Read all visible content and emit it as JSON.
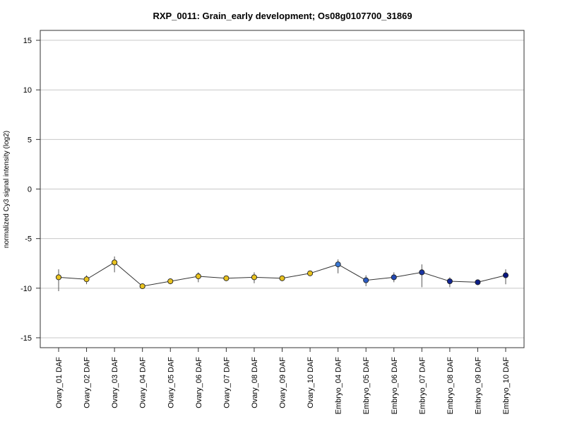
{
  "chart_data": {
    "type": "line",
    "title": "RXP_0011: Grain_early development; Os08g0107700_31869",
    "xlabel": "",
    "ylabel": "normalized Cy3 signal intensity (log2)",
    "ylim": [
      -16,
      16
    ],
    "yticks": [
      -15,
      -10,
      -5,
      0,
      5,
      10,
      15
    ],
    "ytick_labels": [
      "-15",
      "-10",
      "-5",
      "0",
      "5",
      "10",
      "15"
    ],
    "grid": true,
    "categories": [
      "Ovary_01 DAF",
      "Ovary_02 DAF",
      "Ovary_03 DAF",
      "Ovary_04 DAF",
      "Ovary_05 DAF",
      "Ovary_06 DAF",
      "Ovary_07 DAF",
      "Ovary_08 DAF",
      "Ovary_09 DAF",
      "Ovary_10 DAF",
      "Embryo_04 DAF",
      "Embryo_05 DAF",
      "Embryo_06 DAF",
      "Embryo_07 DAF",
      "Embryo_08 DAF",
      "Embryo_09 DAF",
      "Embryo_10 DAF"
    ],
    "series": [
      {
        "values": [
          -8.9,
          -9.1,
          -7.4,
          -9.8,
          -9.3,
          -8.8,
          -9.0,
          -8.9,
          -9.0,
          -8.5,
          -7.6,
          -9.2,
          -8.9,
          -8.4,
          -9.3,
          -9.4,
          -8.7
        ],
        "error_low": [
          -10.3,
          -9.6,
          -8.4,
          -9.9,
          -9.6,
          -9.4,
          -9.2,
          -9.5,
          -9.1,
          -8.7,
          -8.5,
          -9.8,
          -9.4,
          -9.9,
          -9.9,
          -9.5,
          -9.6
        ],
        "error_high": [
          -8.1,
          -8.7,
          -6.8,
          -9.7,
          -9.1,
          -8.4,
          -8.8,
          -8.4,
          -8.9,
          -8.3,
          -7.1,
          -8.7,
          -8.4,
          -7.6,
          -8.9,
          -9.3,
          -8.1
        ],
        "point_colors": [
          "#e8c21f",
          "#e8c21f",
          "#e8c21f",
          "#e8c21f",
          "#e8c21f",
          "#e8c21f",
          "#e8c21f",
          "#e8c21f",
          "#e8c21f",
          "#e8c21f",
          "#3a78d4",
          "#2c5cc4",
          "#2248b4",
          "#1a36a4",
          "#122694",
          "#0c1e88",
          "#081680"
        ]
      }
    ],
    "line_color": "#333333",
    "grid_color": "#c8c8c8"
  }
}
